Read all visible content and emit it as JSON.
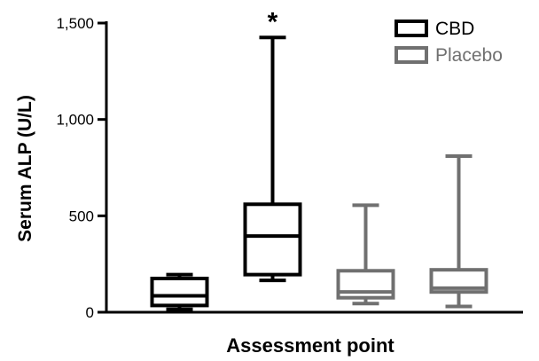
{
  "chart_data": {
    "type": "box",
    "title": "",
    "xlabel": "Assessment point",
    "ylabel": "Serum ALP (U/L)",
    "ylim": [
      0,
      1500
    ],
    "yticks": [
      {
        "value": 0,
        "label": "0"
      },
      {
        "value": 500,
        "label": "500"
      },
      {
        "value": 1000,
        "label": "1,000"
      },
      {
        "value": 1500,
        "label": "1,500"
      }
    ],
    "grid": false,
    "legend_position": "top-right",
    "series": [
      {
        "name": "CBD",
        "color": "#000000"
      },
      {
        "name": "Placebo",
        "color": "#707070"
      }
    ],
    "boxes": [
      {
        "series": "CBD",
        "min": 15,
        "q1": 35,
        "median": 85,
        "q3": 175,
        "max": 195
      },
      {
        "series": "CBD",
        "min": 165,
        "q1": 195,
        "median": 395,
        "q3": 560,
        "max": 1425,
        "annotation": "*"
      },
      {
        "series": "Placebo",
        "min": 45,
        "q1": 75,
        "median": 105,
        "q3": 215,
        "max": 555
      },
      {
        "series": "Placebo",
        "min": 30,
        "q1": 105,
        "median": 125,
        "q3": 220,
        "max": 810
      }
    ]
  }
}
